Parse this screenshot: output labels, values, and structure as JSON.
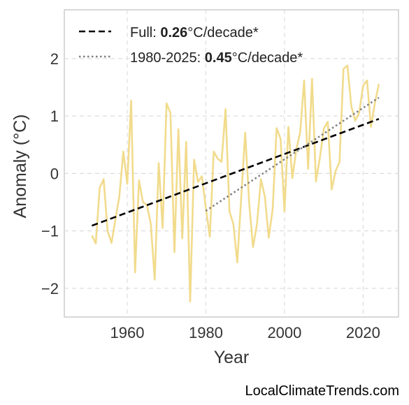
{
  "chart_data": {
    "type": "line",
    "xlabel": "Year",
    "ylabel": "Anomaly (°C)",
    "xlim": [
      1944,
      2029
    ],
    "ylim": [
      -2.5,
      2.85
    ],
    "xticks": [
      "1960",
      "1980",
      "2000",
      "2020"
    ],
    "xtick_values": [
      1960,
      1980,
      2000,
      2020
    ],
    "yticks": [
      "−2",
      "−1",
      "0",
      "1",
      "2"
    ],
    "ytick_values": [
      -2,
      -1,
      0,
      1,
      2
    ],
    "grid": true,
    "legend_position": "top-left",
    "series": [
      {
        "style": "solid",
        "color": "#f0d77f",
        "x": [
          1951,
          1952,
          1953,
          1954,
          1955,
          1956,
          1957,
          1958,
          1959,
          1960,
          1961,
          1962,
          1963,
          1964,
          1965,
          1966,
          1967,
          1968,
          1969,
          1970,
          1971,
          1972,
          1973,
          1974,
          1975,
          1976,
          1977,
          1978,
          1979,
          1980,
          1981,
          1982,
          1983,
          1984,
          1985,
          1986,
          1987,
          1988,
          1989,
          1990,
          1991,
          1992,
          1993,
          1994,
          1995,
          1996,
          1997,
          1998,
          1999,
          2000,
          2001,
          2002,
          2003,
          2004,
          2005,
          2006,
          2007,
          2008,
          2009,
          2010,
          2011,
          2012,
          2013,
          2014,
          2015,
          2016,
          2017,
          2018,
          2019,
          2020,
          2021,
          2022,
          2023,
          2024
        ],
        "y": [
          -1.08,
          -1.22,
          -0.25,
          -0.1,
          -1.0,
          -1.21,
          -0.8,
          -0.4,
          0.38,
          -0.18,
          1.27,
          -1.72,
          -0.12,
          -0.5,
          -0.55,
          -0.88,
          -1.85,
          0.18,
          -0.95,
          1.22,
          1.05,
          -1.37,
          0.77,
          -1.13,
          0.55,
          -2.23,
          0.24,
          -0.15,
          -0.05,
          -0.6,
          -1.1,
          0.38,
          0.26,
          0.2,
          1.12,
          -0.66,
          -0.88,
          -1.55,
          -0.4,
          0.71,
          -0.5,
          -1.28,
          -0.88,
          -0.1,
          -0.4,
          -1.12,
          -0.62,
          0.79,
          0.6,
          -0.66,
          0.81,
          -0.08,
          0.42,
          0.72,
          1.62,
          0.08,
          1.65,
          -0.14,
          0.27,
          0.78,
          0.9,
          -0.28,
          0.04,
          0.2,
          1.82,
          1.88,
          1.17,
          0.92,
          1.06,
          1.53,
          1.62,
          0.81,
          1.23,
          1.56
        ]
      },
      {
        "style": "dashed",
        "color": "#000000",
        "x": [
          1951,
          2024
        ],
        "y": [
          -0.91,
          0.95
        ]
      },
      {
        "style": "dotted",
        "color": "#808080",
        "x": [
          1980,
          2024
        ],
        "y": [
          -0.65,
          1.32
        ]
      }
    ],
    "legend": [
      {
        "prefix": "Full: ",
        "value": "0.26",
        "suffix": "°C/decade*",
        "style": "dashed",
        "color": "#000000"
      },
      {
        "prefix": "1980-2025: ",
        "value": "0.45",
        "suffix": "°C/decade*",
        "style": "dotted",
        "color": "#808080"
      }
    ]
  },
  "source_text": "LocalClimateTrends.com"
}
